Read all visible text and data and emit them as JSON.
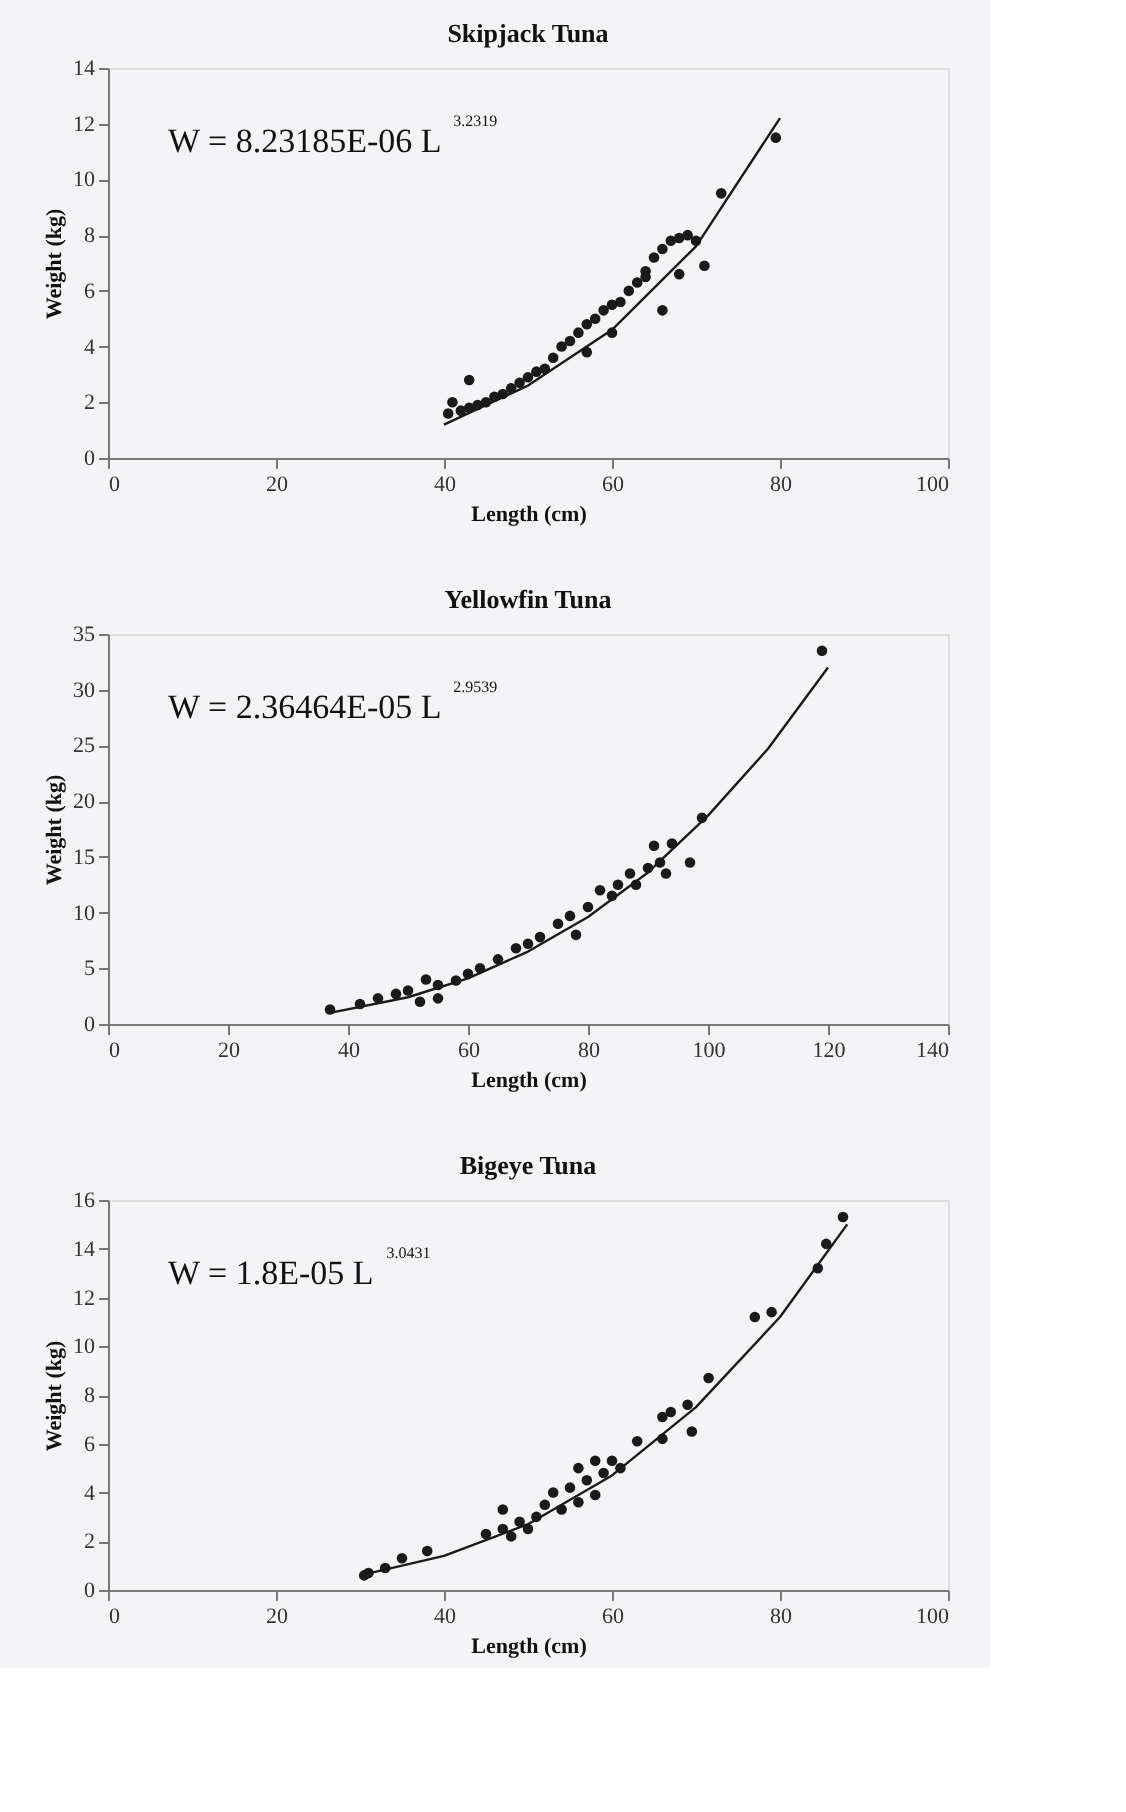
{
  "chart_data": [
    {
      "type": "scatter",
      "title": "Skipjack Tuna",
      "xlabel": "Length (cm)",
      "ylabel": "Weight (kg)",
      "annotations": [
        "W = 8.23185E-06 L$^{3.2319}$"
      ],
      "xlim": [
        0,
        100
      ],
      "xticks": [
        0,
        20,
        40,
        60,
        80,
        100
      ],
      "ylim": [
        0,
        14
      ],
      "yticks": [
        0,
        2,
        4,
        6,
        8,
        10,
        12,
        14
      ],
      "grid": false,
      "legend": false,
      "marker": "circle",
      "series": [
        {
          "type": "scatter",
          "color": "#1a1a1a",
          "x": [
            40.5,
            41,
            42,
            43,
            43,
            44,
            45,
            46,
            47,
            48,
            49,
            50,
            51,
            52,
            53,
            54,
            55,
            56,
            57,
            58,
            59,
            60,
            61,
            57,
            60,
            62,
            63,
            64,
            65,
            66,
            67,
            68,
            69,
            70,
            68,
            66,
            71,
            73,
            79.5,
            64
          ],
          "values": [
            1.6,
            2.0,
            1.7,
            1.8,
            2.8,
            1.9,
            2.0,
            2.2,
            2.3,
            2.5,
            2.7,
            2.9,
            3.1,
            3.2,
            3.6,
            4.0,
            4.2,
            4.5,
            4.8,
            5.0,
            5.3,
            5.5,
            5.6,
            3.8,
            4.5,
            6.0,
            6.3,
            6.7,
            7.2,
            7.5,
            7.8,
            7.9,
            8.0,
            7.8,
            6.6,
            5.3,
            6.9,
            9.5,
            11.5,
            6.5
          ]
        },
        {
          "type": "line",
          "color": "#1a1a1a",
          "marker": "none",
          "line_style": "solid",
          "x": [
            40,
            50,
            60,
            70,
            80
          ],
          "values": [
            1.2,
            2.6,
            4.6,
            7.6,
            12.2
          ]
        }
      ]
    },
    {
      "type": "scatter",
      "title": "Yellowfin Tuna",
      "xlabel": "Length (cm)",
      "ylabel": "Weight (kg)",
      "annotations": [
        "W = 2.36464E-05 L$^{2.9539}$"
      ],
      "xlim": [
        0,
        140
      ],
      "xticks": [
        0,
        20,
        40,
        60,
        80,
        100,
        120,
        140
      ],
      "ylim": [
        0,
        35
      ],
      "yticks": [
        0,
        5,
        10,
        15,
        20,
        25,
        30,
        35
      ],
      "grid": false,
      "legend": false,
      "marker": "circle",
      "series": [
        {
          "type": "scatter",
          "color": "#1a1a1a",
          "x": [
            37,
            42,
            45,
            48,
            50,
            52,
            53,
            55,
            55,
            58,
            60,
            62,
            65,
            68,
            70,
            72,
            75,
            77,
            78,
            80,
            82,
            84,
            85,
            87,
            88,
            90,
            91,
            92,
            93,
            94,
            97,
            99,
            119
          ],
          "values": [
            1.3,
            1.8,
            2.3,
            2.7,
            3.0,
            2.0,
            4.0,
            2.3,
            3.5,
            3.9,
            4.5,
            5.0,
            5.8,
            6.8,
            7.2,
            7.8,
            9.0,
            9.7,
            8.0,
            10.5,
            12.0,
            11.5,
            12.5,
            13.5,
            12.5,
            14.0,
            16.0,
            14.5,
            13.5,
            16.2,
            14.5,
            18.5,
            33.5
          ]
        },
        {
          "type": "line",
          "color": "#1a1a1a",
          "marker": "none",
          "line_style": "solid",
          "x": [
            37,
            50,
            60,
            70,
            80,
            90,
            100,
            110,
            120
          ],
          "values": [
            1.0,
            2.4,
            4.1,
            6.5,
            9.6,
            13.6,
            18.7,
            24.7,
            32.0
          ]
        }
      ]
    },
    {
      "type": "scatter",
      "title": "Bigeye Tuna",
      "xlabel": "Length (cm)",
      "ylabel": "Weight (kg)",
      "annotations": [
        "W = 1.8E-05 L$^{3.0431}$"
      ],
      "xlim": [
        0,
        100
      ],
      "xticks": [
        0,
        20,
        40,
        60,
        80,
        100
      ],
      "ylim": [
        0,
        16
      ],
      "yticks": [
        0,
        2,
        4,
        6,
        8,
        10,
        12,
        14,
        16
      ],
      "grid": false,
      "legend": false,
      "marker": "circle",
      "series": [
        {
          "type": "scatter",
          "color": "#1a1a1a",
          "x": [
            30.5,
            31,
            33,
            35,
            38,
            45,
            47,
            47,
            48,
            49,
            50,
            51,
            52,
            53,
            54,
            55,
            56,
            56,
            57,
            58,
            58,
            59,
            60,
            61,
            63,
            66,
            66,
            67,
            69,
            69.5,
            71.5,
            77,
            79,
            84.5,
            85.5,
            87.5
          ],
          "values": [
            0.6,
            0.7,
            0.9,
            1.3,
            1.6,
            2.3,
            3.3,
            2.5,
            2.2,
            2.8,
            2.5,
            3.0,
            3.5,
            4.0,
            3.3,
            4.2,
            3.6,
            5.0,
            4.5,
            3.9,
            5.3,
            4.8,
            5.3,
            5.0,
            6.1,
            6.2,
            7.1,
            7.3,
            7.6,
            6.5,
            8.7,
            11.2,
            11.4,
            13.2,
            14.2,
            15.3
          ]
        },
        {
          "type": "line",
          "color": "#1a1a1a",
          "marker": "none",
          "line_style": "solid",
          "x": [
            30,
            40,
            50,
            60,
            70,
            80,
            88
          ],
          "values": [
            0.6,
            1.4,
            2.7,
            4.7,
            7.5,
            11.2,
            15.0
          ]
        }
      ]
    }
  ]
}
